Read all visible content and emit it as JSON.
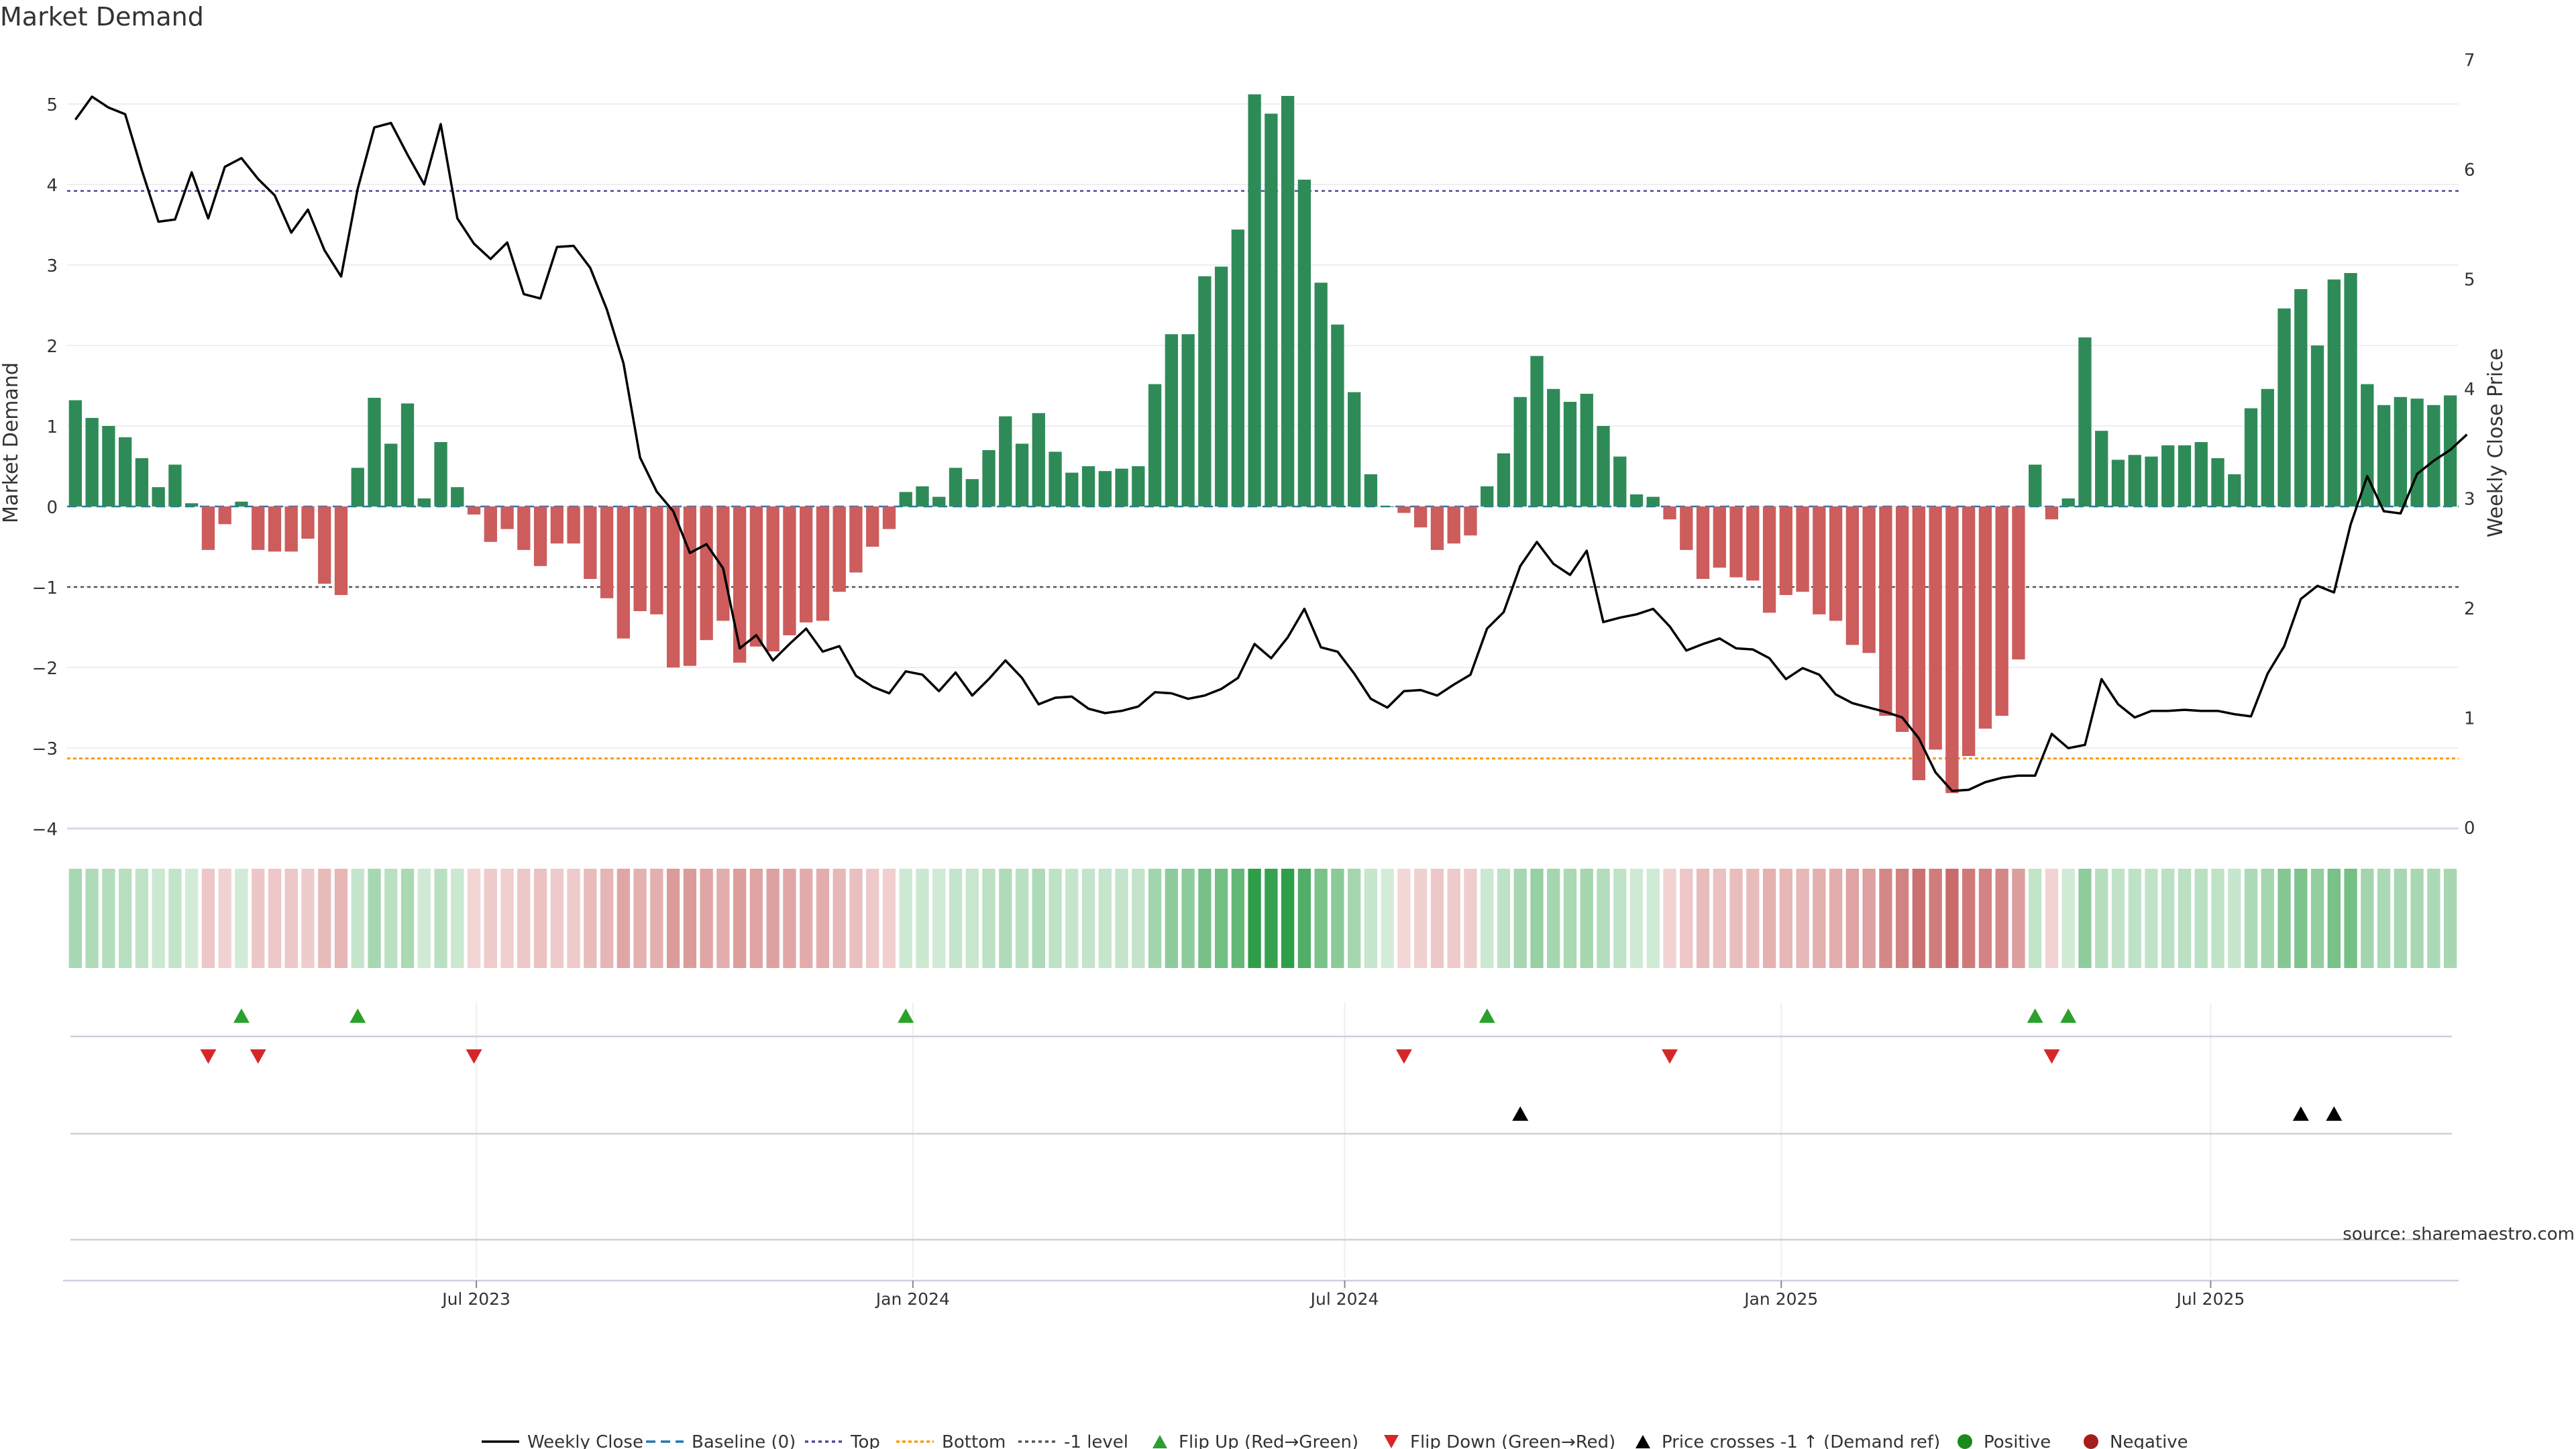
{
  "chart_data": {
    "type": "bar",
    "title": "Market Demand",
    "ylabel": "Market Demand",
    "y2label": "Weekly Close Price",
    "ylim": [
      -4,
      5.6
    ],
    "y2lim": [
      0,
      7
    ],
    "yticks": [
      -4,
      -3,
      -2,
      -1,
      0,
      1,
      2,
      3,
      4,
      5
    ],
    "yticks_text": [
      "−4",
      "−3",
      "−2",
      "−1",
      "0",
      "1",
      "2",
      "3",
      "4",
      "5"
    ],
    "y2ticks": [
      0,
      1,
      2,
      3,
      4,
      5,
      6,
      7
    ],
    "y2ticks_text": [
      "0",
      "1",
      "2",
      "3",
      "4",
      "5",
      "6",
      "7"
    ],
    "x_start": "2023-01-13",
    "x_step_days": 7,
    "xticks": [
      {
        "date": "2023-07-01",
        "label": "Jul 2023"
      },
      {
        "date": "2024-01-01",
        "label": "Jan 2024"
      },
      {
        "date": "2024-07-01",
        "label": "Jul 2024"
      },
      {
        "date": "2025-01-01",
        "label": "Jan 2025"
      },
      {
        "date": "2025-07-01",
        "label": "Jul 2025"
      }
    ],
    "levels": {
      "top": 3.92,
      "bottom": -3.13,
      "minus_one": -1,
      "baseline": 0
    },
    "series": [
      {
        "name": "Market Demand",
        "values": [
          1.32,
          1.1,
          1.0,
          0.86,
          0.6,
          0.24,
          0.52,
          0.04,
          -0.54,
          -0.22,
          0.06,
          -0.54,
          -0.56,
          -0.56,
          -0.4,
          -0.96,
          -1.1,
          0.48,
          1.35,
          0.78,
          1.28,
          0.1,
          0.8,
          0.24,
          -0.1,
          -0.44,
          -0.28,
          -0.54,
          -0.74,
          -0.46,
          -0.46,
          -0.9,
          -1.14,
          -1.64,
          -1.3,
          -1.34,
          -2.0,
          -1.98,
          -1.66,
          -1.42,
          -1.94,
          -1.74,
          -1.8,
          -1.6,
          -1.44,
          -1.42,
          -1.06,
          -0.82,
          -0.5,
          -0.28,
          0.18,
          0.25,
          0.12,
          0.48,
          0.34,
          0.7,
          1.12,
          0.78,
          1.16,
          0.68,
          0.42,
          0.5,
          0.44,
          0.47,
          0.5,
          1.52,
          2.14,
          2.14,
          2.86,
          2.98,
          3.44,
          5.12,
          4.88,
          5.1,
          4.06,
          2.78,
          2.26,
          1.42,
          0.4,
          0.0,
          -0.08,
          -0.26,
          -0.54,
          -0.46,
          -0.36,
          0.25,
          0.66,
          1.36,
          1.87,
          1.46,
          1.3,
          1.4,
          1.0,
          0.62,
          0.15,
          0.12,
          -0.16,
          -0.54,
          -0.9,
          -0.76,
          -0.88,
          -0.92,
          -1.32,
          -1.1,
          -1.06,
          -1.34,
          -1.42,
          -1.72,
          -1.82,
          -2.6,
          -2.8,
          -3.4,
          -3.02,
          -3.56,
          -3.1,
          -2.76,
          -2.6,
          -1.9,
          0.52,
          -0.16,
          0.1,
          2.1,
          0.94,
          0.58,
          0.64,
          0.62,
          0.76,
          0.76,
          0.8,
          0.6,
          0.4,
          1.22,
          1.46,
          2.46,
          2.7,
          2.0,
          2.82,
          2.9,
          1.52,
          1.26,
          1.36,
          1.34,
          1.26,
          1.38
        ]
      },
      {
        "name": "Weekly Close",
        "values": [
          6.45,
          6.66,
          6.56,
          6.5,
          5.99,
          5.52,
          5.54,
          5.97,
          5.55,
          6.02,
          6.1,
          5.91,
          5.76,
          5.42,
          5.63,
          5.26,
          5.02,
          5.82,
          6.38,
          6.42,
          6.13,
          5.86,
          6.41,
          5.55,
          5.32,
          5.18,
          5.33,
          4.86,
          4.82,
          5.29,
          5.3,
          5.1,
          4.72,
          4.23,
          3.37,
          3.06,
          2.88,
          2.5,
          2.58,
          2.36,
          1.63,
          1.75,
          1.52,
          1.67,
          1.81,
          1.6,
          1.65,
          1.38,
          1.28,
          1.22,
          1.42,
          1.39,
          1.24,
          1.41,
          1.2,
          1.35,
          1.52,
          1.36,
          1.12,
          1.18,
          1.19,
          1.08,
          1.04,
          1.06,
          1.1,
          1.23,
          1.22,
          1.17,
          1.2,
          1.26,
          1.36,
          1.67,
          1.54,
          1.73,
          1.99,
          1.64,
          1.6,
          1.4,
          1.17,
          1.09,
          1.24,
          1.25,
          1.2,
          1.3,
          1.39,
          1.81,
          1.96,
          2.38,
          2.6,
          2.4,
          2.3,
          2.52,
          1.87,
          1.91,
          1.94,
          1.99,
          1.83,
          1.61,
          1.67,
          1.72,
          1.63,
          1.62,
          1.54,
          1.35,
          1.45,
          1.39,
          1.21,
          1.13,
          1.09,
          1.05,
          1.0,
          0.81,
          0.5,
          0.33,
          0.34,
          0.41,
          0.45,
          0.47,
          0.47,
          0.85,
          0.72,
          0.75,
          1.35,
          1.12,
          1.0,
          1.06,
          1.06,
          1.07,
          1.06,
          1.06,
          1.03,
          1.01,
          1.4,
          1.65,
          2.08,
          2.2,
          2.14,
          2.76,
          3.2,
          2.88,
          2.86,
          3.22,
          3.34,
          3.44,
          3.58
        ]
      }
    ],
    "flip_up_idx": [
      10,
      17,
      50,
      85,
      118,
      120
    ],
    "flip_down_idx": [
      8,
      11,
      24,
      80,
      96,
      119
    ],
    "cross_idx": [
      87,
      134,
      136
    ],
    "legend": [
      "Weekly Close",
      "Baseline (0)",
      "Top",
      "Bottom",
      "-1 level",
      "Flip Up (Red→Green)",
      "Flip Down (Green→Red)",
      "Price crosses -1 ↑ (Demand ref)",
      "Positive",
      "Negative"
    ],
    "legend_position": "bottom-center",
    "source": "source: sharemaestro.com",
    "colors": {
      "positive": "#2e8b57",
      "negative": "#cd5c5c",
      "price": "#000000",
      "flip_up": "#2ca02c",
      "flip_down": "#d62728",
      "baseline": "#1f77b4",
      "top": "#4b4b9f",
      "bottom": "#ff9900",
      "minus_one": "#555555"
    }
  }
}
